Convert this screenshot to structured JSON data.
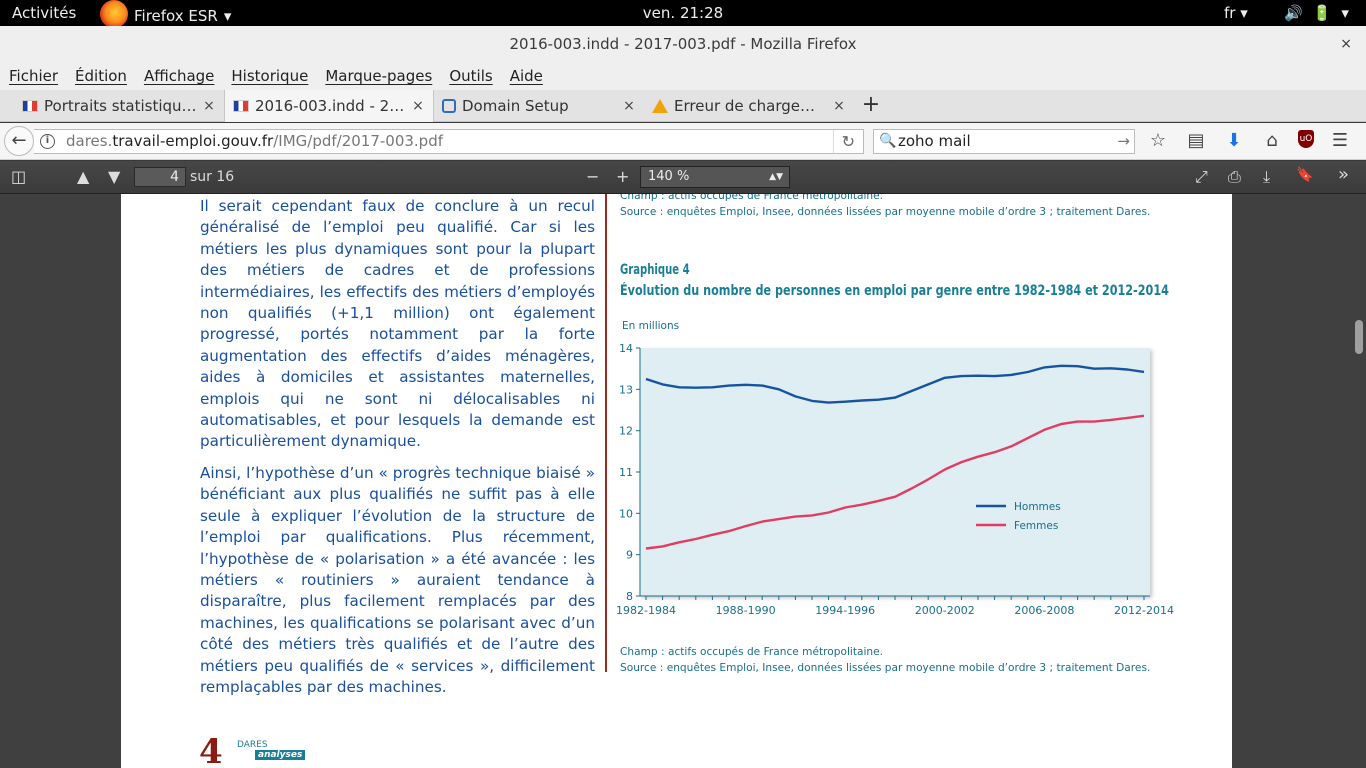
{
  "topbar": {
    "activities": "Activités",
    "app_name": "Firefox ESR",
    "app_arrow": "▾",
    "clock": "ven. 21:28",
    "lang": "fr",
    "lang_arrow": "▾",
    "volume_icon": "🔊",
    "battery_icon": "🔋",
    "tray_arrow": "▾"
  },
  "window": {
    "title": "2016-003.indd - 2017-003.pdf - Mozilla Firefox",
    "close": "×"
  },
  "menu": [
    "Fichier",
    "Édition",
    "Affichage",
    "Historique",
    "Marque-pages",
    "Outils",
    "Aide"
  ],
  "tabs": [
    {
      "label": "Portraits statistiqu…",
      "icon": "flag-favicon",
      "close": "×"
    },
    {
      "label": "2016-003.indd - 2…",
      "icon": "flag-favicon",
      "close": "×"
    },
    {
      "label": "Domain Setup",
      "icon": "mail-favicon",
      "close": "×"
    },
    {
      "label": "Erreur de charge…",
      "icon": "warning-favicon",
      "close": "×"
    }
  ],
  "new_tab": "+",
  "nav": {
    "back": "←",
    "info": "i",
    "url_prefix": "dares.",
    "url_domain": "travail-emploi.gouv.fr",
    "url_path": "/IMG/pdf/2017-003.pdf",
    "reload": "↻",
    "search_icon": "🔍",
    "search_value": "zoho mail",
    "search_go": "→",
    "bookmark_star": "☆",
    "reader": "▤",
    "download": "⬇",
    "home": "⌂",
    "ublock": "uO",
    "menu": "☰"
  },
  "pdf_toolbar": {
    "sidebar_toggle": "◫",
    "prev_page": "▲",
    "next_page": "▼",
    "page_value": "4",
    "page_count": "sur 16",
    "zoom_out": "−",
    "zoom_in": "+",
    "zoom_value": "140 %",
    "zoom_arrow": "▲▼",
    "fullscreen": "⤢",
    "print": "⎙",
    "save": "⤓",
    "bookmark": "🔖",
    "more": "»"
  },
  "document": {
    "paragraph_1": "Il serait cependant faux de conclure à un recul généralisé de l’emploi peu qualifié. Car si les métiers les plus dynamiques sont pour la plupart des métiers de cadres et de professions intermédiaires, les effectifs des métiers d’employés non qualifiés (+1,1 million) ont également progressé, portés notamment par la forte augmentation des effectifs d’aides ménagères, aides à domiciles et assistantes maternelles, emplois qui ne sont ni délocalisables ni automatisables, et pour lesquels la demande est particulièrement dynamique.",
    "paragraph_2": "Ainsi, l’hypothèse d’un « progrès technique biaisé » bénéficiant aux plus qualifiés ne suffit pas à elle seule à expliquer l’évolution de la structure de l’emploi par qualifications. Plus récemment, l’hypothèse de « polarisation » a été avancée : les métiers « routiniers » auraient tendance à disparaître, plus facilement remplacés par des machines, les qualifications se polarisant avec d’un côté des métiers très qualifiés et de l’autre des métiers peu qualifiés de « services », difficilement remplaçables par des machines.",
    "source_top_1": "Champ : actifs occupés de France métropolitaine.",
    "source_top_2": "Source : enquêtes Emploi, Insee, données lissées par moyenne mobile d’ordre 3 ; traitement Dares.",
    "graph_label": "Graphique 4",
    "graph_title": "Évolution du nombre de personnes en emploi par genre entre 1982-1984 et 2012-2014",
    "source_bottom_1": "Champ : actifs occupés de France métropolitaine.",
    "source_bottom_2": "Source : enquêtes Emploi, Insee, données lissées par moyenne mobile d’ordre 3 ; traitement Dares.",
    "page_number": "4",
    "logo_top": "DARES",
    "logo_bottom": "analyses"
  },
  "chart_data": {
    "type": "line",
    "ylabel": "En millions",
    "ylim": [
      8,
      14
    ],
    "yticks": [
      8,
      9,
      10,
      11,
      12,
      13,
      14
    ],
    "xtick_labels": [
      "1982-1984",
      "1988-1990",
      "1994-1996",
      "2000-2002",
      "2006-2008",
      "2012-2014"
    ],
    "xtick_index": [
      0,
      6,
      12,
      18,
      24,
      30
    ],
    "legend_position": "center-right",
    "background": "#deeef3",
    "series": [
      {
        "name": "Hommes",
        "color": "#1653a0",
        "values": [
          13.25,
          13.12,
          13.05,
          13.04,
          13.05,
          13.09,
          13.11,
          13.09,
          13.0,
          12.83,
          12.72,
          12.68,
          12.7,
          12.73,
          12.75,
          12.8,
          12.96,
          13.12,
          13.28,
          13.32,
          13.33,
          13.32,
          13.35,
          13.42,
          13.53,
          13.57,
          13.56,
          13.5,
          13.51,
          13.48,
          13.42
        ]
      },
      {
        "name": "Femmes",
        "color": "#e23c62",
        "values": [
          9.15,
          9.2,
          9.3,
          9.38,
          9.48,
          9.57,
          9.69,
          9.8,
          9.86,
          9.92,
          9.95,
          10.02,
          10.14,
          10.21,
          10.3,
          10.4,
          10.6,
          10.82,
          11.06,
          11.24,
          11.37,
          11.48,
          11.62,
          11.82,
          12.02,
          12.16,
          12.22,
          12.22,
          12.26,
          12.31,
          12.36
        ]
      }
    ]
  }
}
